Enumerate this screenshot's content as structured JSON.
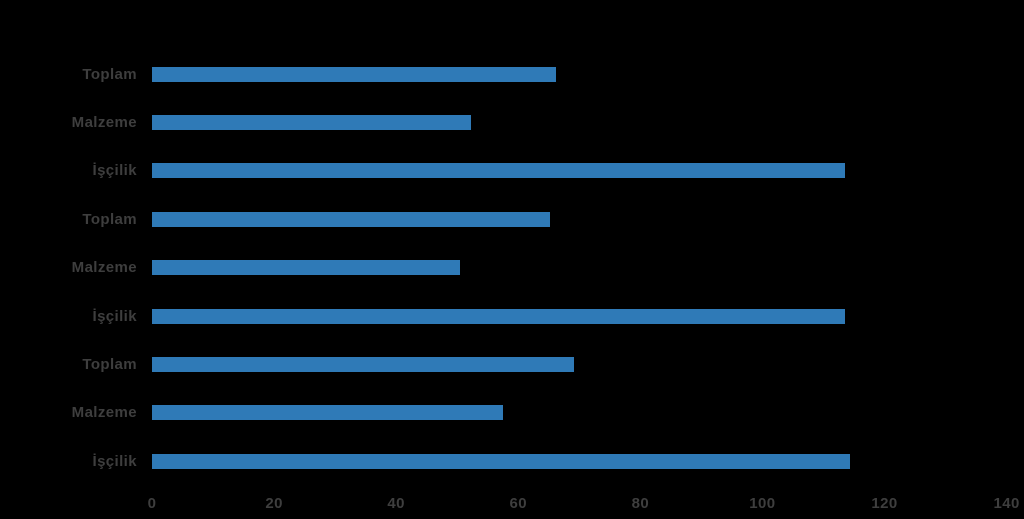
{
  "chart_data": {
    "type": "bar",
    "orientation": "horizontal",
    "title": "",
    "categories": [
      "Toplam",
      "Malzeme",
      "İşçilik",
      "Toplam",
      "Malzeme",
      "İşçilik",
      "Toplam",
      "Malzeme",
      "İşçilik"
    ],
    "values": [
      66.2,
      52.3,
      113.5,
      65.2,
      50.5,
      113.5,
      69.2,
      57.5,
      114.3
    ],
    "groups_note": "three repeated groups of Toplam/Malzeme/İşçilik, no legend or group titles visible",
    "xlabel": "",
    "ylabel": "",
    "xlim": [
      0,
      140
    ],
    "xticks": [
      0,
      20,
      40,
      60,
      80,
      100,
      120,
      140
    ],
    "grid": false,
    "legend": null,
    "colors": {
      "bar": "#2f7ab7",
      "text": "#3e3e3e",
      "background": "#000000"
    }
  }
}
